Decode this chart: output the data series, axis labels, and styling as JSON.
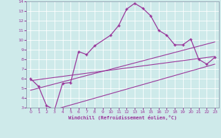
{
  "xlabel": "Windchill (Refroidissement éolien,°C)",
  "bg_color": "#ceeaea",
  "line_color": "#993399",
  "xlim": [
    -0.5,
    23.5
  ],
  "ylim": [
    3,
    14
  ],
  "xticks": [
    0,
    1,
    2,
    3,
    4,
    5,
    6,
    7,
    8,
    9,
    10,
    11,
    12,
    13,
    14,
    15,
    16,
    17,
    18,
    19,
    20,
    21,
    22,
    23
  ],
  "yticks": [
    3,
    4,
    5,
    6,
    7,
    8,
    9,
    10,
    11,
    12,
    13,
    14
  ],
  "main_x": [
    0,
    1,
    2,
    3,
    4,
    5,
    6,
    7,
    8,
    10,
    11,
    12,
    13,
    14,
    15,
    16,
    17,
    18,
    19,
    20,
    21,
    22,
    23
  ],
  "main_y": [
    6.0,
    5.2,
    3.2,
    2.8,
    5.5,
    5.6,
    8.8,
    8.5,
    9.4,
    10.5,
    11.5,
    13.2,
    13.8,
    13.3,
    12.5,
    11.0,
    10.5,
    9.5,
    9.5,
    10.1,
    8.0,
    7.5,
    8.2
  ],
  "line1_x": [
    0,
    23
  ],
  "line1_y": [
    5.8,
    8.3
  ],
  "line2_x": [
    0,
    23
  ],
  "line2_y": [
    4.8,
    9.8
  ],
  "line3_x": [
    3,
    23
  ],
  "line3_y": [
    2.8,
    7.5
  ],
  "grid_color": "#ffffff",
  "tick_color": "#993399",
  "xlabel_color": "#993399"
}
